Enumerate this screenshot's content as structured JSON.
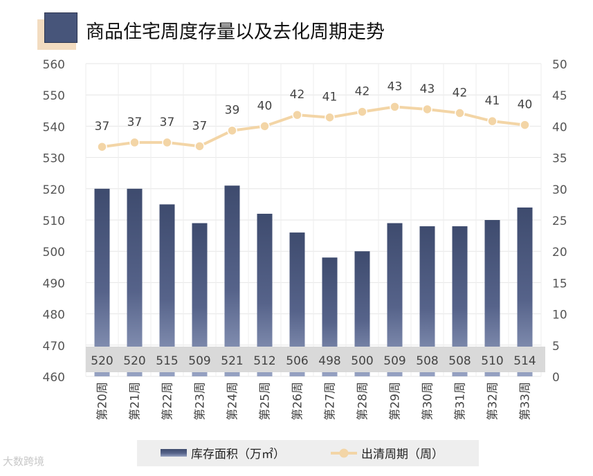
{
  "title": "商品住宅周度存量以及去化周期走势",
  "watermark": "大数跨境",
  "colors": {
    "bar": "#47557a",
    "bar_fade": "#8f9bbd",
    "line": "#f3d5a6",
    "line_marker": "#f3d5a6",
    "label_band": "#d9d9d9",
    "axis_text": "#555555"
  },
  "chart_data": {
    "type": "bar",
    "title": "商品住宅周度存量以及去化周期走势",
    "categories": [
      "第20周",
      "第21周",
      "第22周",
      "第23周",
      "第24周",
      "第25周",
      "第26周",
      "第27周",
      "第28周",
      "第29周",
      "第30周",
      "第31周",
      "第32周",
      "第33周"
    ],
    "series": [
      {
        "name": "库存面积（万㎡）",
        "type": "bar",
        "axis": "left",
        "values": [
          520,
          520,
          515,
          509,
          521,
          512,
          506,
          498,
          500,
          509,
          508,
          508,
          510,
          514
        ],
        "labels": [
          "520",
          "520",
          "515",
          "509",
          "521",
          "512",
          "506",
          "498",
          "500",
          "509",
          "508",
          "508",
          "510",
          "514"
        ]
      },
      {
        "name": "出清周期（周）",
        "type": "line",
        "axis": "right",
        "values": [
          36.7,
          37.4,
          37.4,
          36.8,
          39.3,
          40.0,
          41.8,
          41.4,
          42.3,
          43.1,
          42.7,
          42.1,
          40.8,
          40.2
        ],
        "labels": [
          "37",
          "37",
          "37",
          "37",
          "39",
          "40",
          "42",
          "41",
          "42",
          "43",
          "43",
          "42",
          "41",
          "40"
        ]
      }
    ],
    "y_left": {
      "min": 460,
      "max": 560,
      "step": 10,
      "ticks": [
        "460",
        "470",
        "480",
        "490",
        "500",
        "510",
        "520",
        "530",
        "540",
        "550",
        "560"
      ]
    },
    "y_right": {
      "min": 0,
      "max": 50,
      "step": 5,
      "ticks": [
        "0",
        "5",
        "10",
        "15",
        "20",
        "25",
        "30",
        "35",
        "40",
        "45",
        "50"
      ]
    },
    "legend": {
      "position": "bottom",
      "items": [
        "库存面积（万㎡）",
        "出清周期（周）"
      ]
    },
    "grid": true
  }
}
